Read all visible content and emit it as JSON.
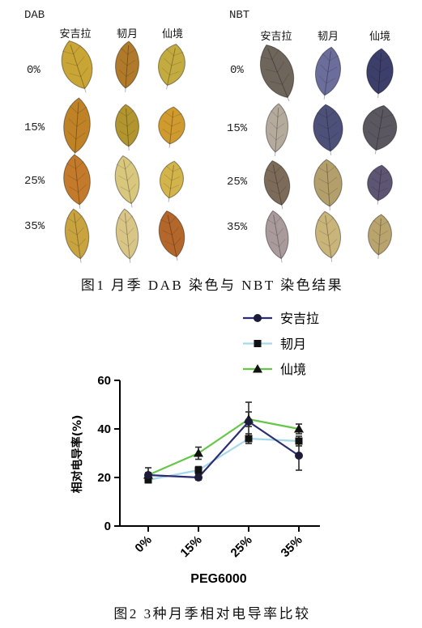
{
  "figure1": {
    "caption": "图1 月季 DAB 染色与 NBT 染色结果",
    "panels": [
      {
        "title": "DAB",
        "columns": [
          "安吉拉",
          "韧月",
          "仙境"
        ],
        "rows": [
          "0%",
          "15%",
          "25%",
          "35%"
        ],
        "leaf_colors": [
          [
            "#c8a535",
            "#b17a2b",
            "#c4ab40"
          ],
          [
            "#bf8226",
            "#b3952f",
            "#cf9b2e"
          ],
          [
            "#c47a2b",
            "#d8c77d",
            "#d3b44a"
          ],
          [
            "#c8a33f",
            "#d9c686",
            "#b3672b"
          ]
        ]
      },
      {
        "title": "NBT",
        "columns": [
          "安吉拉",
          "韧月",
          "仙境"
        ],
        "rows": [
          "0%",
          "15%",
          "25%",
          "35%"
        ],
        "leaf_colors": [
          [
            "#6e655b",
            "#6b6d9a",
            "#3d3f6b"
          ],
          [
            "#b5ab9c",
            "#4d5079",
            "#5b5760"
          ],
          [
            "#7b6b58",
            "#b39f6b",
            "#5e5573"
          ],
          [
            "#a99b9b",
            "#c9b47a",
            "#b9a46e"
          ]
        ]
      }
    ]
  },
  "figure2": {
    "caption": "图2 3种月季相对电导率比较"
  },
  "chart_data": {
    "type": "line",
    "categories": [
      "0%",
      "15%",
      "25%",
      "35%"
    ],
    "series": [
      {
        "name": "安吉拉",
        "values": [
          21,
          20,
          43,
          29
        ],
        "errors": [
          3,
          1,
          8,
          6
        ],
        "color": "#2b2d6e",
        "marker": "circle",
        "marker_color": "#1c1c3a"
      },
      {
        "name": "韧月",
        "values": [
          19,
          23,
          36,
          35
        ],
        "errors": [
          1,
          1.5,
          2,
          2
        ],
        "color": "#a6d8ec",
        "marker": "square",
        "marker_color": "#111111"
      },
      {
        "name": "仙境",
        "values": [
          21,
          30,
          44,
          40
        ],
        "errors": [
          1,
          2.5,
          3,
          2
        ],
        "color": "#66c64a",
        "marker": "triangle",
        "marker_color": "#111111"
      }
    ],
    "xlabel": "PEG6000",
    "ylabel": "相对电导率(%)",
    "ylim": [
      0,
      60
    ],
    "yticks": [
      0,
      20,
      40,
      60
    ],
    "legend": "top-right",
    "grid": false
  }
}
